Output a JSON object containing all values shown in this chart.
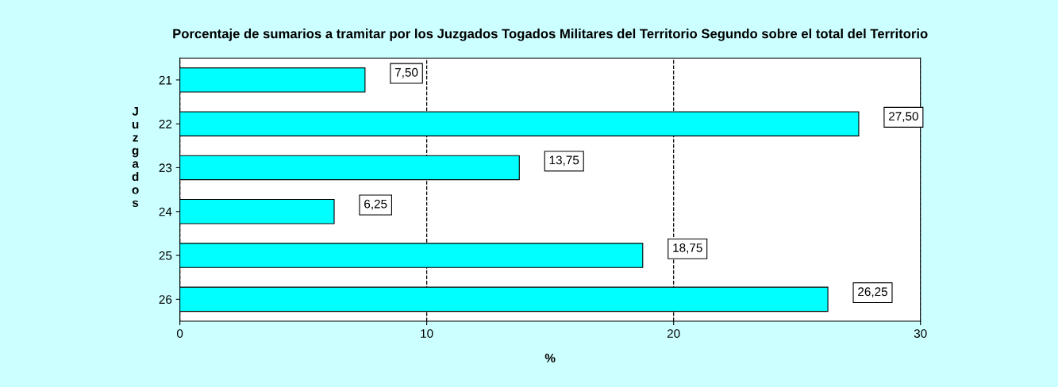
{
  "chart_data": {
    "type": "bar",
    "orientation": "horizontal",
    "title": "Porcentaje de sumarios a tramitar por los Juzgados Togados Militares del Territorio Segundo sobre el total del Territorio",
    "xlabel": "%",
    "ylabel": "Juzgados",
    "categories": [
      "21",
      "22",
      "23",
      "24",
      "25",
      "26"
    ],
    "values": [
      7.5,
      27.5,
      13.75,
      6.25,
      18.75,
      26.25
    ],
    "value_labels": [
      "7,50",
      "27,50",
      "13,75",
      "6,25",
      "18,75",
      "26,25"
    ],
    "color": "#00ffff",
    "xlim": [
      0,
      30
    ],
    "xticks": [
      0,
      10,
      20,
      30
    ],
    "grid": "x",
    "line_style": "dashed",
    "legend": false
  }
}
